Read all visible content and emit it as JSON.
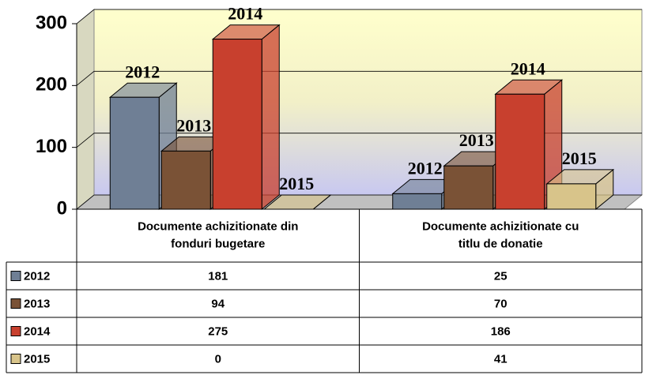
{
  "chart_data": {
    "type": "bar3d",
    "categories": [
      "Documente achizitionate din fonduri bugetare",
      "Documente achizitionate cu titlu de donatie"
    ],
    "series": [
      {
        "name": "2012",
        "color": "#6f7f95",
        "values": [
          181,
          25
        ]
      },
      {
        "name": "2013",
        "color": "#7a5236",
        "values": [
          94,
          70
        ]
      },
      {
        "name": "2014",
        "color": "#c8402e",
        "values": [
          275,
          186
        ]
      },
      {
        "name": "2015",
        "color": "#d8c48a",
        "values": [
          0,
          41
        ]
      }
    ],
    "ylim": [
      0,
      300
    ],
    "yticks": [
      0,
      100,
      200,
      300
    ],
    "grid": true
  }
}
